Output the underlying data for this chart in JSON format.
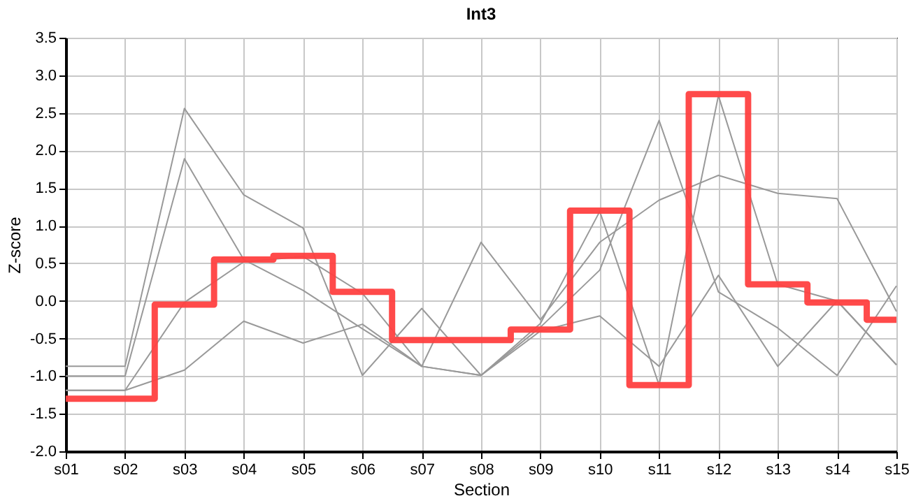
{
  "chart_data": {
    "type": "line",
    "title": "Int3",
    "xlabel": "Section",
    "ylabel": "Z-score",
    "categories": [
      "s01",
      "s02",
      "s03",
      "s04",
      "s05",
      "s06",
      "s07",
      "s08",
      "s09",
      "s10",
      "s11",
      "s12",
      "s13",
      "s14",
      "s15"
    ],
    "series": [
      {
        "color": "#999999",
        "values": [
          -0.87,
          -0.87,
          2.56,
          1.41,
          0.97,
          -0.99,
          -0.1,
          -0.99,
          -0.3,
          1.19,
          -1.12,
          2.73,
          0.22,
          0.0,
          -0.85
        ]
      },
      {
        "color": "#999999",
        "values": [
          -1.0,
          -1.0,
          1.89,
          0.55,
          0.14,
          -0.37,
          -0.87,
          -0.99,
          -0.35,
          0.41,
          2.4,
          0.12,
          -0.36,
          -0.99,
          0.2
        ]
      },
      {
        "color": "#999999",
        "values": [
          -1.19,
          -1.19,
          -0.02,
          0.52,
          0.59,
          0.1,
          -0.87,
          0.78,
          -0.25,
          0.78,
          1.34,
          1.67,
          1.43,
          1.36,
          -0.14
        ]
      },
      {
        "color": "#999999",
        "values": [
          -1.19,
          -1.19,
          -0.92,
          -0.27,
          -0.56,
          -0.31,
          -0.87,
          -0.99,
          -0.4,
          -0.2,
          -0.87,
          0.34,
          -0.87,
          0.0,
          -0.85
        ]
      },
      {
        "type": "step",
        "color": "#ff4040",
        "values": [
          -1.3,
          -1.3,
          -0.05,
          0.55,
          0.6,
          0.12,
          -0.52,
          -0.52,
          -0.38,
          1.2,
          -1.12,
          2.75,
          0.22,
          -0.02,
          -0.25
        ]
      }
    ],
    "ylim": [
      -2.0,
      3.5
    ],
    "yticks": [
      {
        "value": -2,
        "label": "-2.0"
      },
      {
        "value": -1.5,
        "label": "-1.5"
      },
      {
        "value": -1,
        "label": "-1.0"
      },
      {
        "value": -0.5,
        "label": "-0.5"
      },
      {
        "value": 0,
        "label": "0.0"
      },
      {
        "value": 0.5,
        "label": "0.5"
      },
      {
        "value": 1,
        "label": "1.0"
      },
      {
        "value": 1.5,
        "label": "1.5"
      },
      {
        "value": 2,
        "label": "2.0"
      },
      {
        "value": 2.5,
        "label": "2.5"
      },
      {
        "value": 3,
        "label": "3.0"
      },
      {
        "value": 3.5,
        "label": "3.5"
      }
    ],
    "grid": true
  }
}
